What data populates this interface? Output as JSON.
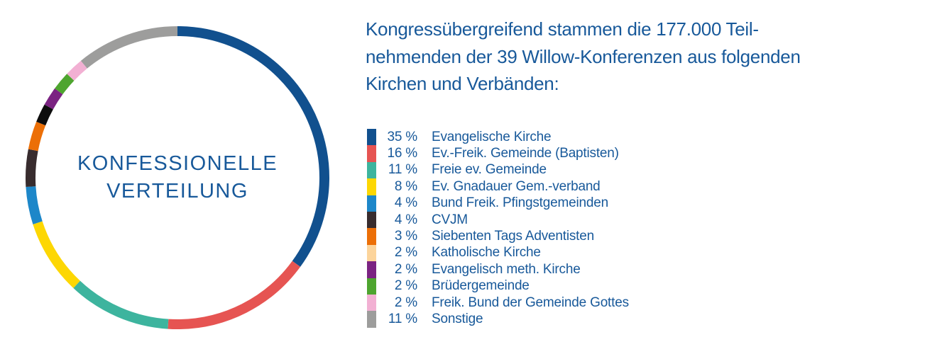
{
  "intro": {
    "lines": [
      "Kongressübergreifend stammen die 177.000 Teil-",
      "nehmenden der 39 Willow-Konferenzen aus folgenden",
      "Kirchen und Verbänden:"
    ]
  },
  "colors": {
    "text_blue": "#18599a",
    "background": "#ffffff"
  },
  "chart_data": {
    "type": "donut",
    "title_lines": [
      "KONFESSIONELLE",
      "VERTEILUNG"
    ],
    "legend_position": "right",
    "start_angle_deg": 0,
    "direction": "clockwise",
    "items": [
      {
        "pct": 35,
        "pct_label": "35 %",
        "label": "Evangelische Kirche",
        "color": "#11508e"
      },
      {
        "pct": 16,
        "pct_label": "16 %",
        "label": "Ev.-Freik. Gemeinde (Baptisten)",
        "color": "#e65452"
      },
      {
        "pct": 11,
        "pct_label": "11 %",
        "label": "Freie ev. Gemeinde",
        "color": "#3db49e"
      },
      {
        "pct": 8,
        "pct_label": "8 %",
        "label": "Ev. Gnadauer Gem.-verband",
        "color": "#fdd703"
      },
      {
        "pct": 4,
        "pct_label": "4 %",
        "label": "Bund Freik. Pfingstgemeinden",
        "color": "#1d87c9"
      },
      {
        "pct": 4,
        "pct_label": "4 %",
        "label": "CVJM",
        "color": "#382c2e"
      },
      {
        "pct": 3,
        "pct_label": "3 %",
        "label": "Siebenten Tags Adventisten",
        "color": "#ec6f07"
      },
      {
        "pct": 2,
        "pct_label": "2 %",
        "label": "Katholische Kirche",
        "color": "#fcd49b",
        "ring_color": "#0d0d0d"
      },
      {
        "pct": 2,
        "pct_label": "2 %",
        "label": "Evangelisch meth. Kirche",
        "color": "#7b2382"
      },
      {
        "pct": 2,
        "pct_label": "2 %",
        "label": "Brüdergemeinde",
        "color": "#4ea52f"
      },
      {
        "pct": 2,
        "pct_label": "2 %",
        "label": "Freik. Bund der Gemeinde Gottes",
        "color": "#f2b0d3"
      },
      {
        "pct": 11,
        "pct_label": "11 %",
        "label": "Sonstige",
        "color": "#9d9d9c"
      }
    ]
  }
}
